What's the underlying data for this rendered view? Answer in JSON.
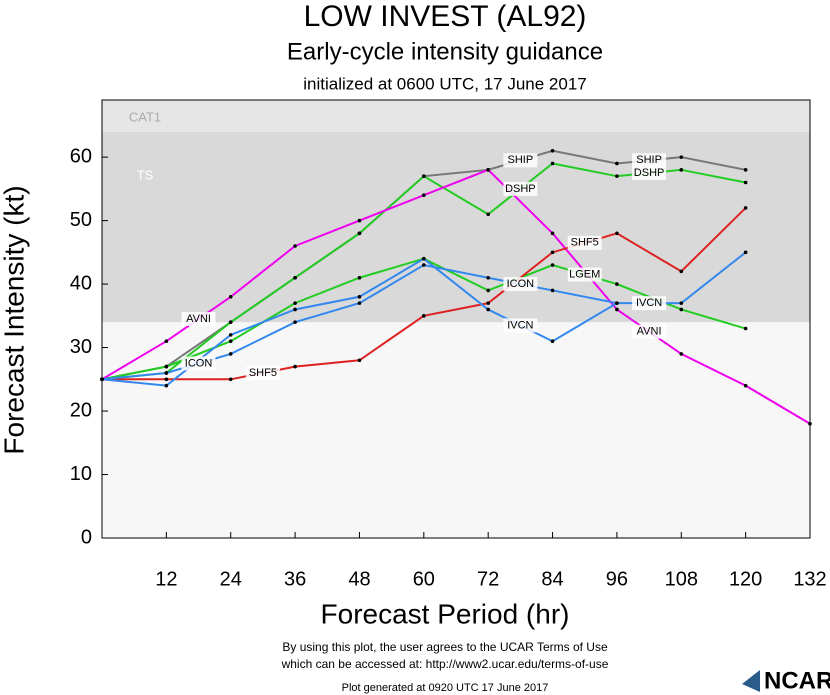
{
  "chart_data": {
    "type": "line",
    "title": "LOW INVEST (AL92)",
    "subtitle": "Early-cycle intensity guidance",
    "subtitle2": "initialized at 0600 UTC, 17 June 2017",
    "x_label": "Forecast Period (hr)",
    "y_label": "Forecast Intensity (kt)",
    "x": [
      0,
      12,
      24,
      36,
      48,
      60,
      72,
      84,
      96,
      108,
      120,
      132
    ],
    "xlim": [
      0,
      132
    ],
    "xticks": [
      12,
      24,
      36,
      48,
      60,
      72,
      84,
      96,
      108,
      120,
      132
    ],
    "ylim": [
      0,
      69
    ],
    "yticks": [
      0,
      10,
      20,
      30,
      40,
      50,
      60
    ],
    "bands": [
      {
        "label": "TS",
        "from": 34,
        "to": 64,
        "color": "#d9d9d9"
      },
      {
        "label": "CAT1",
        "from": 64,
        "to": 69,
        "color": "#e6e6e6"
      }
    ],
    "series": [
      {
        "name": "SHIP",
        "color": "#777777",
        "values": [
          25,
          27,
          34,
          41,
          48,
          57,
          58,
          61,
          59,
          60,
          58,
          null
        ]
      },
      {
        "name": "DSHP",
        "color": "#22cc22",
        "values": [
          25,
          26,
          34,
          41,
          48,
          57,
          51,
          59,
          57,
          58,
          56,
          null
        ]
      },
      {
        "name": "LGEM",
        "color": "#22cc22",
        "values": [
          25,
          27,
          31,
          37,
          41,
          44,
          39,
          43,
          40,
          36,
          33,
          null
        ]
      },
      {
        "name": "AVNI",
        "color": "#ee00ee",
        "values": [
          25,
          31,
          38,
          46,
          50,
          54,
          58,
          48,
          36,
          29,
          24,
          18
        ]
      },
      {
        "name": "SHF5",
        "color": "#dd2222",
        "values": [
          25,
          25,
          25,
          27,
          28,
          35,
          37,
          45,
          48,
          42,
          52,
          null
        ]
      },
      {
        "name": "ICON",
        "color": "#3388ee",
        "values": [
          25,
          26,
          29,
          34,
          37,
          43,
          41,
          39,
          37,
          null,
          null,
          null
        ]
      },
      {
        "name": "IVCN",
        "color": "#3388ee",
        "values": [
          25,
          24,
          32,
          36,
          38,
          44,
          36,
          31,
          37,
          37,
          45,
          null
        ]
      }
    ],
    "footer": [
      "By using this plot, the user agrees to the UCAR Terms of Use",
      "which can be accessed at: http://www2.ucar.edu/terms-of-use",
      "Plot generated at 0920 UTC   17 June 2017"
    ],
    "logo": "NCAR"
  }
}
